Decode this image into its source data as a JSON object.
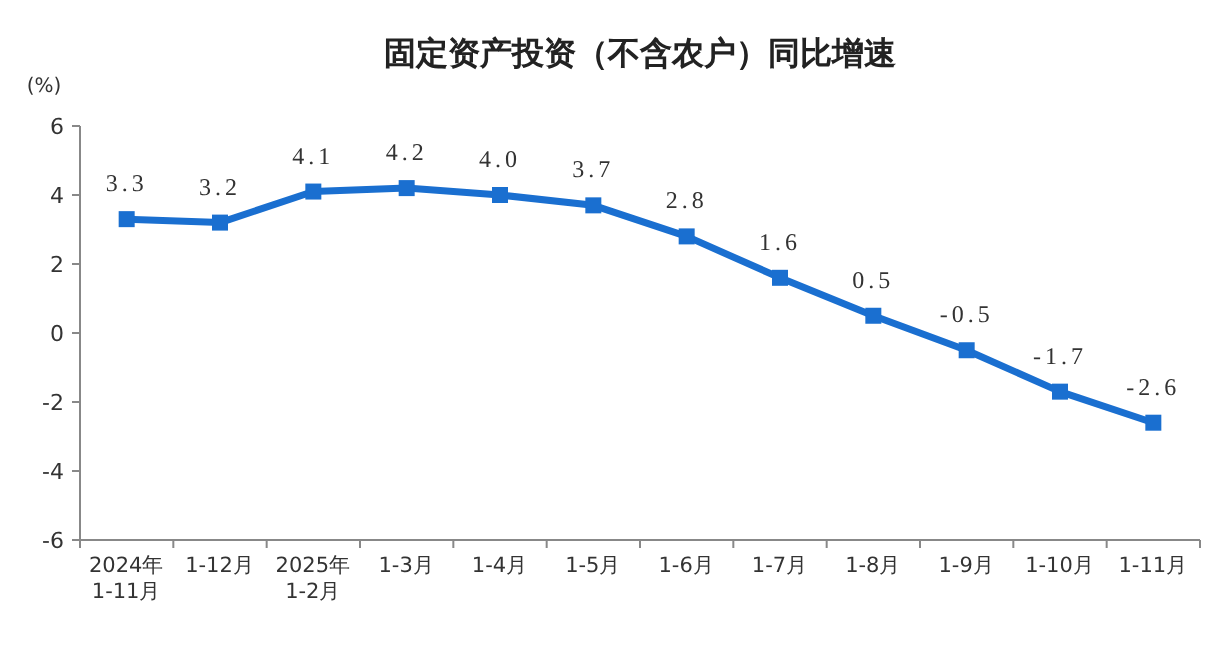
{
  "chart_data": {
    "type": "line",
    "title": "固定资产投资（不含农户）同比增速",
    "ylabel": "(%)",
    "categories": [
      "2024年\n1-11月",
      "1-12月",
      "2025年\n1-2月",
      "1-3月",
      "1-4月",
      "1-5月",
      "1-6月",
      "1-7月",
      "1-8月",
      "1-9月",
      "1-10月",
      "1-11月"
    ],
    "series": [
      {
        "color": "#1a6fd0",
        "values": [
          3.3,
          3.2,
          4.1,
          4.2,
          4.0,
          3.7,
          2.8,
          1.6,
          0.5,
          -0.5,
          -1.7,
          -2.6
        ],
        "value_labels": [
          "3.3",
          "3.2",
          "4.1",
          "4.2",
          "4.0",
          "3.7",
          "2.8",
          "1.6",
          "0.5",
          "-0.5",
          "-1.7",
          "-2.6"
        ]
      }
    ],
    "ylim": [
      -6,
      6
    ],
    "yticks": [
      -6,
      -4,
      -2,
      0,
      2,
      4,
      6
    ],
    "marker": "square",
    "grid": false
  }
}
